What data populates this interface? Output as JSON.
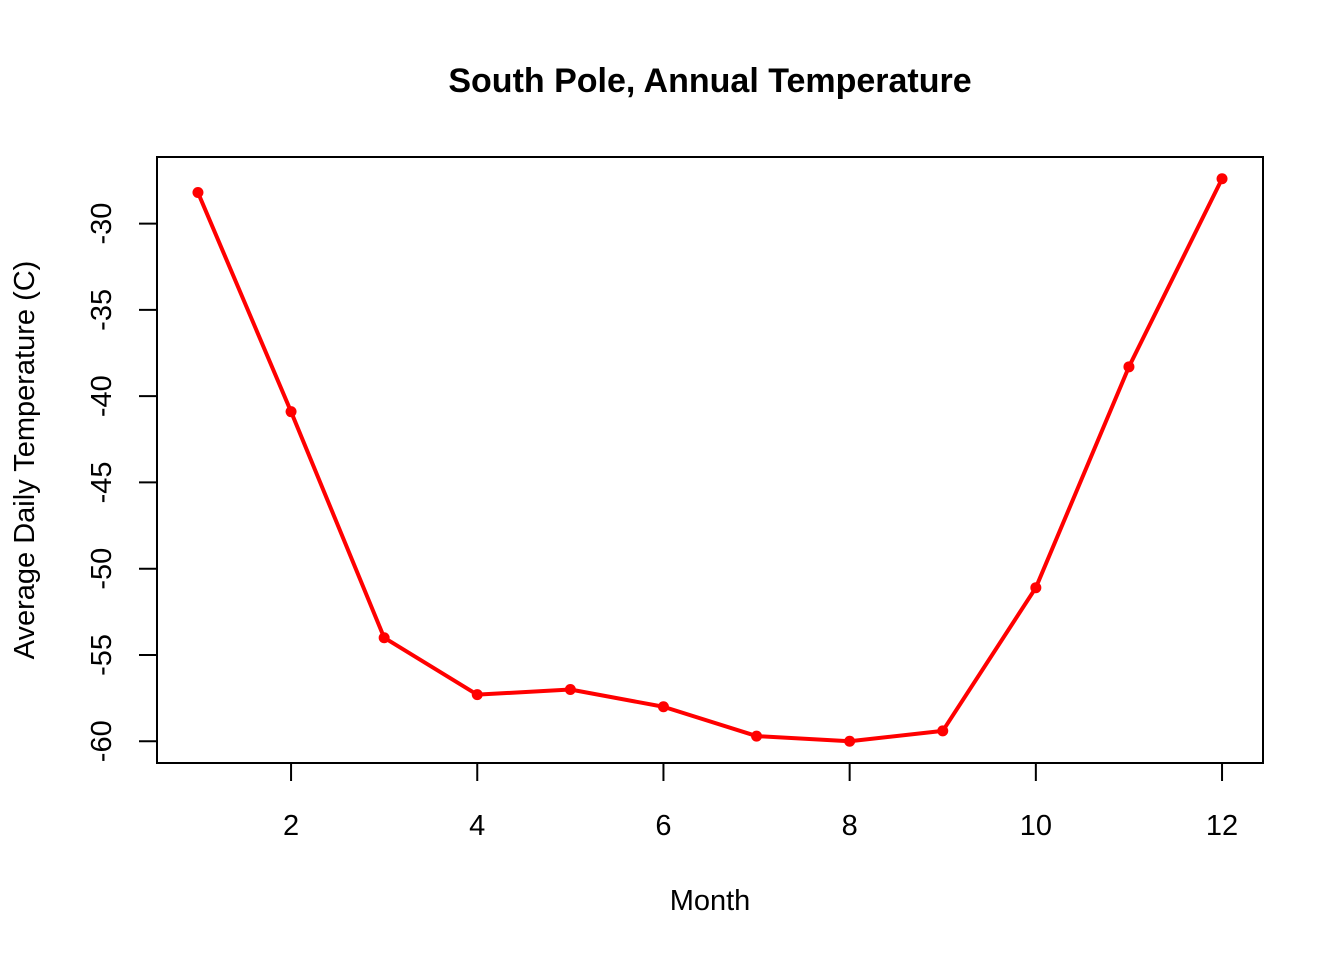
{
  "chart_data": {
    "type": "line",
    "title": "South Pole, Annual Temperature",
    "xlabel": "Month",
    "ylabel": "Average Daily Temperature (C)",
    "x": [
      1,
      2,
      3,
      4,
      5,
      6,
      7,
      8,
      9,
      10,
      11,
      12
    ],
    "series": [
      {
        "values": [
          -28.2,
          -40.9,
          -54.0,
          -57.3,
          -57.0,
          -58.0,
          -59.7,
          -60.0,
          -59.4,
          -51.1,
          -38.3,
          -27.4
        ],
        "color": "#ff0000"
      }
    ],
    "xlim": [
      0.56,
      12.44
    ],
    "ylim": [
      -61.26,
      -26.14
    ],
    "xticks": [
      2,
      4,
      6,
      8,
      10,
      12
    ],
    "yticks": [
      -30,
      -35,
      -40,
      -45,
      -50,
      -55,
      -60
    ],
    "grid": false,
    "legend": "none"
  }
}
